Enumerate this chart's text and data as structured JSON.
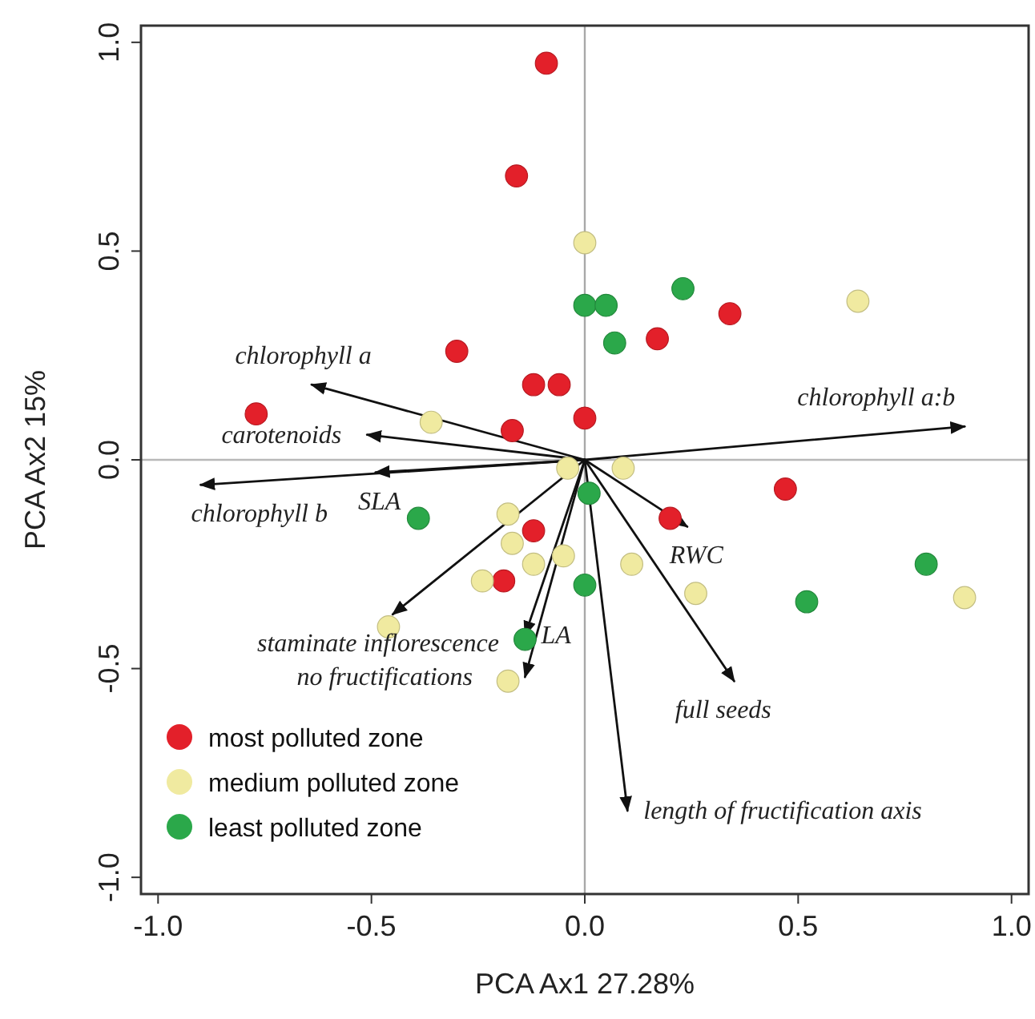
{
  "chart_data": {
    "type": "scatter",
    "xlabel": "PCA Ax1 27.28%",
    "ylabel": "PCA Ax2 15%",
    "xlim": [
      -1.04,
      1.04
    ],
    "ylim": [
      -1.04,
      1.04
    ],
    "xticks": [
      {
        "value": -1,
        "label": "-1.0"
      },
      {
        "value": -0.5,
        "label": "-0.5"
      },
      {
        "value": 0,
        "label": "0.0"
      },
      {
        "value": 0.5,
        "label": "0.5"
      },
      {
        "value": 1,
        "label": "1.0"
      }
    ],
    "yticks": [
      {
        "value": -1,
        "label": "-1.0"
      },
      {
        "value": -0.5,
        "label": "-0.5"
      },
      {
        "value": 0,
        "label": "0.0"
      },
      {
        "value": 0.5,
        "label": "0.5"
      },
      {
        "value": 1,
        "label": "1.0"
      }
    ],
    "grid": false,
    "legend": "bottom left",
    "marker": "circle",
    "ref_lines": [
      {
        "axis": "x",
        "value": 0,
        "color": "#a8a8a8"
      },
      {
        "axis": "y",
        "value": 0,
        "color": "#b8b8b8"
      }
    ],
    "series": [
      {
        "name": "most polluted zone",
        "color": "#e3202a",
        "x": [
          -0.09,
          -0.16,
          -0.3,
          -0.77,
          -0.12,
          -0.06,
          -0.17,
          0.0,
          0.17,
          0.34,
          -0.12,
          -0.19,
          0.2,
          0.47
        ],
        "values": [
          0.95,
          0.68,
          0.26,
          0.11,
          0.18,
          0.18,
          0.07,
          0.1,
          0.29,
          0.35,
          -0.17,
          -0.29,
          -0.14,
          -0.07
        ]
      },
      {
        "name": "medium polluted zone",
        "color": "#f0eaa0",
        "x": [
          0.0,
          0.64,
          -0.36,
          -0.04,
          0.09,
          -0.18,
          -0.17,
          -0.12,
          -0.05,
          -0.24,
          -0.46,
          -0.18,
          0.11,
          0.26,
          0.89
        ],
        "values": [
          0.52,
          0.38,
          0.09,
          -0.02,
          -0.02,
          -0.13,
          -0.2,
          -0.25,
          -0.23,
          -0.29,
          -0.4,
          -0.53,
          -0.25,
          -0.32,
          -0.33
        ]
      },
      {
        "name": "least polluted zone",
        "color": "#2ba84a",
        "x": [
          0.0,
          0.05,
          0.23,
          0.07,
          -0.39,
          -0.14,
          0.01,
          0.0,
          0.52,
          0.8
        ],
        "values": [
          0.37,
          0.37,
          0.41,
          0.28,
          -0.14,
          -0.43,
          -0.08,
          -0.3,
          -0.34,
          -0.25
        ]
      },
      {
        "type": "line",
        "color": "#111111",
        "marker": "none",
        "x": [
          0,
          -0.64
        ],
        "values": [
          0,
          0.18
        ]
      },
      {
        "type": "line",
        "color": "#111111",
        "marker": "none",
        "x": [
          0,
          -0.51
        ],
        "values": [
          0,
          0.06
        ]
      },
      {
        "type": "line",
        "color": "#111111",
        "marker": "none",
        "x": [
          0,
          -0.49
        ],
        "values": [
          0,
          -0.03
        ]
      },
      {
        "type": "line",
        "color": "#111111",
        "marker": "none",
        "x": [
          0,
          -0.9
        ],
        "values": [
          0,
          -0.06
        ]
      },
      {
        "type": "line",
        "color": "#111111",
        "marker": "none",
        "x": [
          0,
          -0.45
        ],
        "values": [
          0,
          -0.37
        ]
      },
      {
        "type": "line",
        "color": "#111111",
        "marker": "none",
        "x": [
          0,
          -0.14
        ],
        "values": [
          0,
          -0.42
        ]
      },
      {
        "type": "line",
        "color": "#111111",
        "marker": "none",
        "x": [
          0,
          -0.14
        ],
        "values": [
          0,
          -0.52
        ]
      },
      {
        "type": "line",
        "color": "#111111",
        "marker": "none",
        "x": [
          0,
          0.24
        ],
        "values": [
          0,
          -0.16
        ]
      },
      {
        "type": "line",
        "color": "#111111",
        "marker": "none",
        "x": [
          0,
          0.35
        ],
        "values": [
          0,
          -0.53
        ]
      },
      {
        "type": "line",
        "color": "#111111",
        "marker": "none",
        "x": [
          0,
          0.1
        ],
        "values": [
          0,
          -0.84
        ]
      },
      {
        "type": "line",
        "color": "#111111",
        "marker": "none",
        "x": [
          0,
          0.89
        ],
        "values": [
          0,
          0.08
        ]
      }
    ],
    "annotations": [
      {
        "text": "chlorophyll a",
        "x": -0.64,
        "y": 0.18
      },
      {
        "text": "carotenoids",
        "x": -0.51,
        "y": 0.06
      },
      {
        "text": "SLA",
        "x": -0.49,
        "y": -0.03
      },
      {
        "text": "chlorophyll b",
        "x": -0.9,
        "y": -0.06
      },
      {
        "text": "staminate inflorescence",
        "x": -0.45,
        "y": -0.37
      },
      {
        "text": "LA",
        "x": -0.14,
        "y": -0.42
      },
      {
        "text": "no fructifications",
        "x": -0.14,
        "y": -0.52
      },
      {
        "text": "RWC",
        "x": 0.24,
        "y": -0.16
      },
      {
        "text": "full seeds",
        "x": 0.35,
        "y": -0.53
      },
      {
        "text": "length of fructification axis",
        "x": 0.1,
        "y": -0.84
      },
      {
        "text": "chlorophyll a:b",
        "x": 0.89,
        "y": 0.08
      }
    ]
  }
}
